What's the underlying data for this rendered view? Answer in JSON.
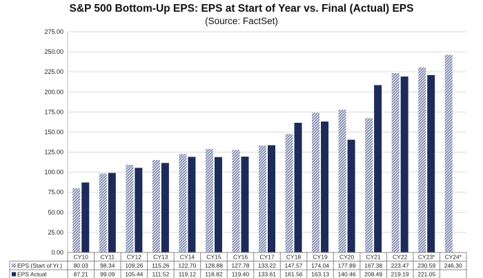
{
  "chart_data": {
    "type": "bar",
    "title": "S&P 500 Bottom-Up EPS: EPS at Start of Year vs. Final (Actual) EPS",
    "subtitle": "(Source: FactSet)",
    "categories": [
      "CY10",
      "CY11",
      "CY12",
      "CY13",
      "CY14",
      "CY15",
      "CY16",
      "CY17",
      "CY18",
      "CY19",
      "CY20",
      "CY21",
      "CY22",
      "CY23*",
      "CY24*"
    ],
    "series": [
      {
        "name": "EPS (Start of Yr.)",
        "color": "#8d96b8",
        "pattern": "hatched",
        "values": [
          80.03,
          98.34,
          109.26,
          115.26,
          122.7,
          128.88,
          127.78,
          133.22,
          147.57,
          174.04,
          177.89,
          167.38,
          223.47,
          230.59,
          246.3
        ],
        "labels": [
          "80.03",
          "98.34",
          "109.26",
          "115.26",
          "122.70",
          "128.88",
          "127.78",
          "133.22",
          "147.57",
          "174.04",
          "177.89",
          "167.38",
          "223.47",
          "230.59",
          "246.30"
        ]
      },
      {
        "name": "EPS Actual",
        "color": "#1c2b5a",
        "pattern": "solid",
        "values": [
          87.21,
          99.09,
          105.44,
          111.52,
          119.12,
          118.82,
          119.4,
          133.61,
          161.56,
          163.13,
          140.46,
          208.49,
          219.19,
          221.05,
          null
        ],
        "labels": [
          "87.21",
          "99.09",
          "105.44",
          "111.52",
          "119.12",
          "118.82",
          "119.40",
          "133.61",
          "161.56",
          "163.13",
          "140.46",
          "208.49",
          "219.19",
          "221.05",
          ""
        ]
      }
    ],
    "ylim": [
      0,
      275
    ],
    "yticks": [
      "0.00",
      "25.00",
      "50.00",
      "75.00",
      "100.00",
      "125.00",
      "150.00",
      "175.00",
      "200.00",
      "225.00",
      "250.00",
      "275.00"
    ],
    "grid": true,
    "legend": "data-table"
  }
}
